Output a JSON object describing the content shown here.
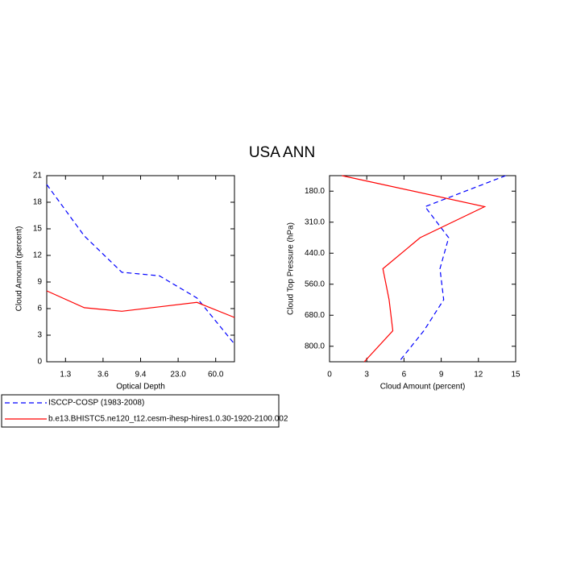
{
  "title": "USA ANN",
  "chart_data": [
    {
      "type": "line",
      "xlabel": "Optical Depth",
      "ylabel": "Cloud Amount (percent)",
      "x": [
        0,
        1,
        2,
        3,
        4,
        5
      ],
      "xlim": [
        0,
        5
      ],
      "xticks": [
        {
          "value": 0.5,
          "label": "1.3"
        },
        {
          "value": 1.5,
          "label": "3.6"
        },
        {
          "value": 2.5,
          "label": "9.4"
        },
        {
          "value": 3.5,
          "label": "23.0"
        },
        {
          "value": 4.5,
          "label": "60.0"
        }
      ],
      "ylim": [
        0,
        21
      ],
      "yticks": [
        0,
        3,
        6,
        9,
        12,
        15,
        18,
        21
      ],
      "legend": "bottom-left",
      "series": [
        {
          "name": "ISCCP-COSP (1983-2008)",
          "color": "#0000ff",
          "dashed": true,
          "values": [
            20.0,
            14.2,
            10.1,
            9.7,
            7.2,
            2.0
          ]
        },
        {
          "name": "b.e13.BHISTC5.ne120_t12.cesm-ihesp-hires1.0.30-1920-2100.002",
          "color": "#ff0000",
          "dashed": false,
          "values": [
            8.0,
            6.1,
            5.7,
            6.2,
            6.7,
            5.0
          ]
        }
      ]
    },
    {
      "type": "line",
      "orientation": "horizontal",
      "xlabel": "Cloud Amount (percent)",
      "ylabel": "Cloud Top Pressure (hPa)",
      "y": [
        0,
        1,
        2,
        3,
        4,
        5,
        6
      ],
      "ylim": [
        6,
        0
      ],
      "yticks": [
        {
          "value": 0.5,
          "label": "180.0"
        },
        {
          "value": 1.5,
          "label": "310.0"
        },
        {
          "value": 2.5,
          "label": "440.0"
        },
        {
          "value": 3.5,
          "label": "560.0"
        },
        {
          "value": 4.5,
          "label": "680.0"
        },
        {
          "value": 5.5,
          "label": "800.0"
        }
      ],
      "xlim": [
        0,
        15
      ],
      "xticks": [
        0,
        3,
        6,
        9,
        12,
        15
      ],
      "series": [
        {
          "color": "#0000ff",
          "dashed": true,
          "values": [
            14.2,
            7.7,
            9.6,
            8.9,
            9.2,
            7.6,
            5.6
          ]
        },
        {
          "color": "#ff0000",
          "dashed": false,
          "values": [
            1.0,
            12.5,
            7.3,
            4.3,
            4.8,
            5.1,
            2.8
          ]
        }
      ]
    }
  ]
}
